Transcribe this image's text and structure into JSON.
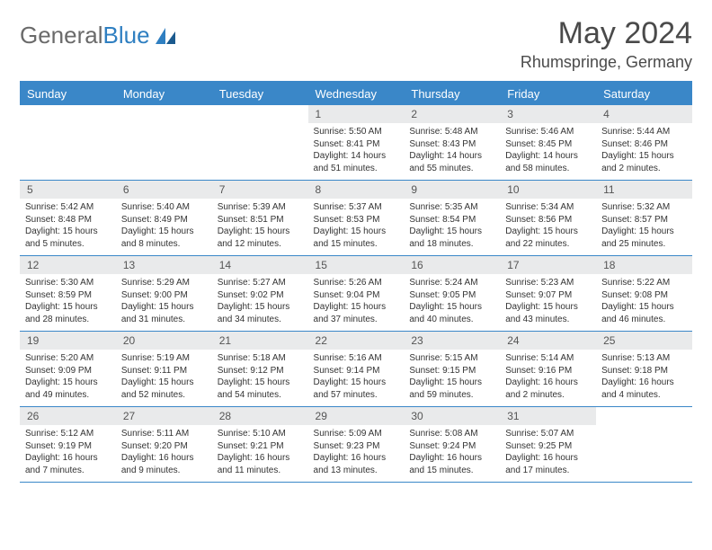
{
  "logo": {
    "text1": "General",
    "text2": "Blue"
  },
  "title": {
    "month": "May 2024",
    "location": "Rhumspringe, Germany"
  },
  "colors": {
    "accent": "#3a87c8",
    "dayHeaderBg": "#e9eaeb",
    "text": "#333333"
  },
  "calendar": {
    "type": "table",
    "daysOfWeek": [
      "Sunday",
      "Monday",
      "Tuesday",
      "Wednesday",
      "Thursday",
      "Friday",
      "Saturday"
    ],
    "weeks": [
      [
        {
          "blank": true
        },
        {
          "blank": true
        },
        {
          "blank": true
        },
        {
          "n": "1",
          "sr": "Sunrise: 5:50 AM",
          "ss": "Sunset: 8:41 PM",
          "dl": "Daylight: 14 hours and 51 minutes."
        },
        {
          "n": "2",
          "sr": "Sunrise: 5:48 AM",
          "ss": "Sunset: 8:43 PM",
          "dl": "Daylight: 14 hours and 55 minutes."
        },
        {
          "n": "3",
          "sr": "Sunrise: 5:46 AM",
          "ss": "Sunset: 8:45 PM",
          "dl": "Daylight: 14 hours and 58 minutes."
        },
        {
          "n": "4",
          "sr": "Sunrise: 5:44 AM",
          "ss": "Sunset: 8:46 PM",
          "dl": "Daylight: 15 hours and 2 minutes."
        }
      ],
      [
        {
          "n": "5",
          "sr": "Sunrise: 5:42 AM",
          "ss": "Sunset: 8:48 PM",
          "dl": "Daylight: 15 hours and 5 minutes."
        },
        {
          "n": "6",
          "sr": "Sunrise: 5:40 AM",
          "ss": "Sunset: 8:49 PM",
          "dl": "Daylight: 15 hours and 8 minutes."
        },
        {
          "n": "7",
          "sr": "Sunrise: 5:39 AM",
          "ss": "Sunset: 8:51 PM",
          "dl": "Daylight: 15 hours and 12 minutes."
        },
        {
          "n": "8",
          "sr": "Sunrise: 5:37 AM",
          "ss": "Sunset: 8:53 PM",
          "dl": "Daylight: 15 hours and 15 minutes."
        },
        {
          "n": "9",
          "sr": "Sunrise: 5:35 AM",
          "ss": "Sunset: 8:54 PM",
          "dl": "Daylight: 15 hours and 18 minutes."
        },
        {
          "n": "10",
          "sr": "Sunrise: 5:34 AM",
          "ss": "Sunset: 8:56 PM",
          "dl": "Daylight: 15 hours and 22 minutes."
        },
        {
          "n": "11",
          "sr": "Sunrise: 5:32 AM",
          "ss": "Sunset: 8:57 PM",
          "dl": "Daylight: 15 hours and 25 minutes."
        }
      ],
      [
        {
          "n": "12",
          "sr": "Sunrise: 5:30 AM",
          "ss": "Sunset: 8:59 PM",
          "dl": "Daylight: 15 hours and 28 minutes."
        },
        {
          "n": "13",
          "sr": "Sunrise: 5:29 AM",
          "ss": "Sunset: 9:00 PM",
          "dl": "Daylight: 15 hours and 31 minutes."
        },
        {
          "n": "14",
          "sr": "Sunrise: 5:27 AM",
          "ss": "Sunset: 9:02 PM",
          "dl": "Daylight: 15 hours and 34 minutes."
        },
        {
          "n": "15",
          "sr": "Sunrise: 5:26 AM",
          "ss": "Sunset: 9:04 PM",
          "dl": "Daylight: 15 hours and 37 minutes."
        },
        {
          "n": "16",
          "sr": "Sunrise: 5:24 AM",
          "ss": "Sunset: 9:05 PM",
          "dl": "Daylight: 15 hours and 40 minutes."
        },
        {
          "n": "17",
          "sr": "Sunrise: 5:23 AM",
          "ss": "Sunset: 9:07 PM",
          "dl": "Daylight: 15 hours and 43 minutes."
        },
        {
          "n": "18",
          "sr": "Sunrise: 5:22 AM",
          "ss": "Sunset: 9:08 PM",
          "dl": "Daylight: 15 hours and 46 minutes."
        }
      ],
      [
        {
          "n": "19",
          "sr": "Sunrise: 5:20 AM",
          "ss": "Sunset: 9:09 PM",
          "dl": "Daylight: 15 hours and 49 minutes."
        },
        {
          "n": "20",
          "sr": "Sunrise: 5:19 AM",
          "ss": "Sunset: 9:11 PM",
          "dl": "Daylight: 15 hours and 52 minutes."
        },
        {
          "n": "21",
          "sr": "Sunrise: 5:18 AM",
          "ss": "Sunset: 9:12 PM",
          "dl": "Daylight: 15 hours and 54 minutes."
        },
        {
          "n": "22",
          "sr": "Sunrise: 5:16 AM",
          "ss": "Sunset: 9:14 PM",
          "dl": "Daylight: 15 hours and 57 minutes."
        },
        {
          "n": "23",
          "sr": "Sunrise: 5:15 AM",
          "ss": "Sunset: 9:15 PM",
          "dl": "Daylight: 15 hours and 59 minutes."
        },
        {
          "n": "24",
          "sr": "Sunrise: 5:14 AM",
          "ss": "Sunset: 9:16 PM",
          "dl": "Daylight: 16 hours and 2 minutes."
        },
        {
          "n": "25",
          "sr": "Sunrise: 5:13 AM",
          "ss": "Sunset: 9:18 PM",
          "dl": "Daylight: 16 hours and 4 minutes."
        }
      ],
      [
        {
          "n": "26",
          "sr": "Sunrise: 5:12 AM",
          "ss": "Sunset: 9:19 PM",
          "dl": "Daylight: 16 hours and 7 minutes."
        },
        {
          "n": "27",
          "sr": "Sunrise: 5:11 AM",
          "ss": "Sunset: 9:20 PM",
          "dl": "Daylight: 16 hours and 9 minutes."
        },
        {
          "n": "28",
          "sr": "Sunrise: 5:10 AM",
          "ss": "Sunset: 9:21 PM",
          "dl": "Daylight: 16 hours and 11 minutes."
        },
        {
          "n": "29",
          "sr": "Sunrise: 5:09 AM",
          "ss": "Sunset: 9:23 PM",
          "dl": "Daylight: 16 hours and 13 minutes."
        },
        {
          "n": "30",
          "sr": "Sunrise: 5:08 AM",
          "ss": "Sunset: 9:24 PM",
          "dl": "Daylight: 16 hours and 15 minutes."
        },
        {
          "n": "31",
          "sr": "Sunrise: 5:07 AM",
          "ss": "Sunset: 9:25 PM",
          "dl": "Daylight: 16 hours and 17 minutes."
        },
        {
          "blank": true
        }
      ]
    ]
  }
}
